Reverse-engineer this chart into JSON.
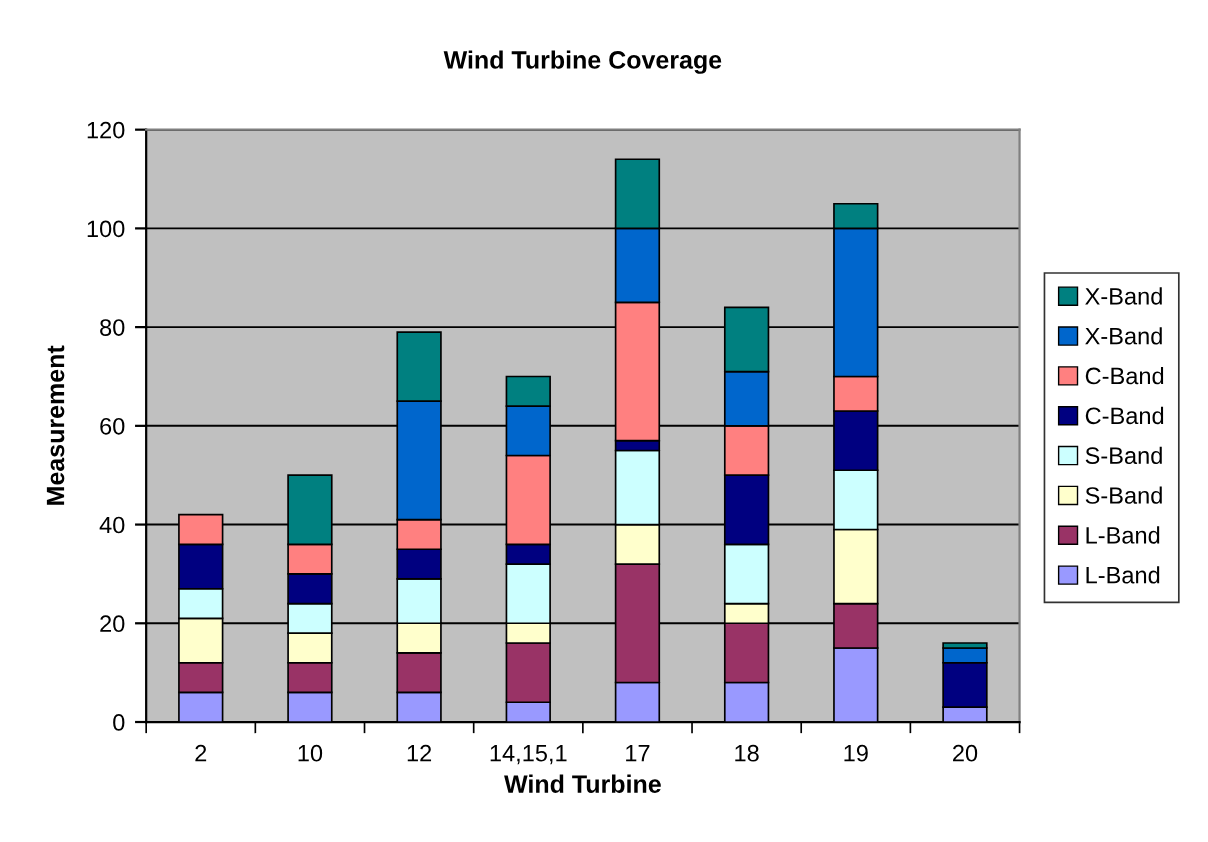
{
  "chart_data": {
    "type": "bar",
    "title": "Wind Turbine Coverage",
    "xlabel": "Wind Turbine",
    "ylabel": "Measurement",
    "categories": [
      "2",
      "10",
      "12",
      "14,15,1",
      "17",
      "18",
      "19",
      "20"
    ],
    "stacked": true,
    "ylim": [
      0,
      120
    ],
    "yticks": [
      0,
      20,
      40,
      60,
      80,
      100,
      120
    ],
    "grid": "y",
    "legend": "right",
    "series": [
      {
        "name": "L-Band",
        "color": "#9999ff",
        "values": [
          6,
          6,
          6,
          4,
          8,
          8,
          15,
          3
        ]
      },
      {
        "name": "L-Band",
        "color": "#993366",
        "values": [
          6,
          6,
          8,
          12,
          24,
          12,
          9,
          null
        ]
      },
      {
        "name": "S-Band",
        "color": "#ffffcc",
        "values": [
          9,
          6,
          6,
          4,
          8,
          4,
          15,
          null
        ]
      },
      {
        "name": "S-Band",
        "color": "#ccffff",
        "values": [
          6,
          6,
          9,
          12,
          15,
          12,
          12,
          null
        ]
      },
      {
        "name": "C-Band",
        "color": "#000080",
        "values": [
          9,
          6,
          6,
          4,
          2,
          14,
          12,
          9
        ]
      },
      {
        "name": "C-Band",
        "color": "#ff8080",
        "values": [
          6,
          6,
          6,
          18,
          28,
          10,
          7,
          null
        ]
      },
      {
        "name": "X-Band",
        "color": "#0066cc",
        "values": [
          null,
          null,
          24,
          10,
          15,
          11,
          30,
          3
        ]
      },
      {
        "name": "X-Band",
        "color": "#008080",
        "values": [
          null,
          14,
          14,
          6,
          14,
          13,
          5,
          1
        ]
      }
    ]
  }
}
